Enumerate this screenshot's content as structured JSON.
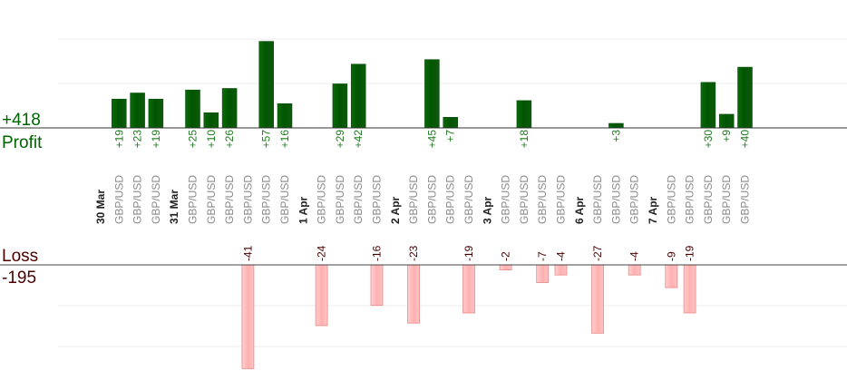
{
  "chart_data": {
    "type": "bar",
    "profit": {
      "label": "Profit",
      "total": "+418",
      "color": "#006400"
    },
    "loss": {
      "label": "Loss",
      "total": "-195",
      "color": "#ffaaaa"
    },
    "days": [
      {
        "date": "30 Mar",
        "trades": [
          {
            "pair": "GBP/USD",
            "value": 19
          },
          {
            "pair": "GBP/USD",
            "value": 23
          },
          {
            "pair": "GBP/USD",
            "value": 19
          }
        ]
      },
      {
        "date": "31 Mar",
        "trades": [
          {
            "pair": "GBP/USD",
            "value": 25
          },
          {
            "pair": "GBP/USD",
            "value": 10
          },
          {
            "pair": "GBP/USD",
            "value": 26
          },
          {
            "pair": "GBP/USD",
            "value": -41
          },
          {
            "pair": "GBP/USD",
            "value": 57
          },
          {
            "pair": "GBP/USD",
            "value": 16
          }
        ]
      },
      {
        "date": "1 Apr",
        "trades": [
          {
            "pair": "GBP/USD",
            "value": -24
          },
          {
            "pair": "GBP/USD",
            "value": 29
          },
          {
            "pair": "GBP/USD",
            "value": 42
          },
          {
            "pair": "GBP/USD",
            "value": -16
          }
        ]
      },
      {
        "date": "2 Apr",
        "trades": [
          {
            "pair": "GBP/USD",
            "value": -23
          },
          {
            "pair": "GBP/USD",
            "value": 45
          },
          {
            "pair": "GBP/USD",
            "value": 7
          },
          {
            "pair": "GBP/USD",
            "value": -19
          }
        ]
      },
      {
        "date": "3 Apr",
        "trades": [
          {
            "pair": "GBP/USD",
            "value": -2
          },
          {
            "pair": "GBP/USD",
            "value": 18
          },
          {
            "pair": "GBP/USD",
            "value": -7
          },
          {
            "pair": "GBP/USD",
            "value": -4
          }
        ]
      },
      {
        "date": "6 Apr",
        "trades": [
          {
            "pair": "GBP/USD",
            "value": -27
          },
          {
            "pair": "GBP/USD",
            "value": 3
          },
          {
            "pair": "GBP/USD",
            "value": -4
          }
        ]
      },
      {
        "date": "7 Apr",
        "trades": [
          {
            "pair": "GBP/USD",
            "value": -9
          },
          {
            "pair": "GBP/USD",
            "value": -19
          },
          {
            "pair": "GBP/USD",
            "value": 30
          },
          {
            "pair": "GBP/USD",
            "value": 9
          },
          {
            "pair": "GBP/USD",
            "value": 40
          }
        ]
      }
    ]
  }
}
